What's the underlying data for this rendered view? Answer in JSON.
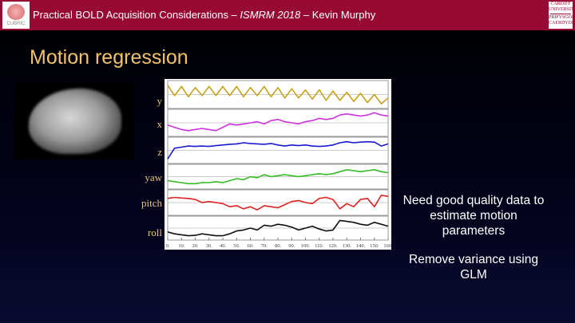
{
  "header": {
    "title_main": "Practical BOLD Acquisition Considerations – ",
    "title_conf": "ISMRM 2018",
    "title_author": " – Kevin Murphy",
    "logo_left_text": "CUBRIC",
    "logo_right_text": "CARDIFF UNIVERSITY PRIFYSGOL CAERDYDD",
    "color": "#960a34"
  },
  "slide": {
    "title": "Motion regression",
    "side_text_1": "Need good quality data to estimate motion parameters",
    "side_text_2": "Remove variance using GLM"
  },
  "chart_data": {
    "type": "line",
    "title": "",
    "xlabel": "",
    "ylabel": "",
    "xlim": [
      0,
      160
    ],
    "x_ticks": [
      "0.",
      "10.",
      "20.",
      "30.",
      "40.",
      "50.",
      "60.",
      "70.",
      "80.",
      "90.",
      "100.",
      "110.",
      "120.",
      "130.",
      "140.",
      "150.",
      "160."
    ],
    "x_step": 5,
    "y_units": "relative (0-1 per panel)",
    "series": [
      {
        "name": "y",
        "color": "#c8a21a",
        "values": [
          0.9,
          0.45,
          0.85,
          0.4,
          0.8,
          0.45,
          0.85,
          0.45,
          0.85,
          0.45,
          0.85,
          0.4,
          0.8,
          0.45,
          0.85,
          0.4,
          0.8,
          0.35,
          0.75,
          0.35,
          0.7,
          0.3,
          0.7,
          0.25,
          0.65,
          0.25,
          0.6,
          0.2,
          0.55,
          0.15,
          0.5,
          0.1,
          0.35
        ]
      },
      {
        "name": "x",
        "color": "#cc33dd",
        "values": [
          0.4,
          0.3,
          0.2,
          0.15,
          0.2,
          0.25,
          0.2,
          0.15,
          0.3,
          0.45,
          0.4,
          0.45,
          0.5,
          0.55,
          0.45,
          0.6,
          0.65,
          0.55,
          0.5,
          0.45,
          0.55,
          0.6,
          0.7,
          0.65,
          0.7,
          0.85,
          0.9,
          0.85,
          0.8,
          0.85,
          0.95,
          0.85,
          0.8
        ]
      },
      {
        "name": "z",
        "color": "#1a1acc",
        "values": [
          0.1,
          0.6,
          0.65,
          0.7,
          0.68,
          0.7,
          0.68,
          0.72,
          0.75,
          0.78,
          0.8,
          0.85,
          0.82,
          0.8,
          0.78,
          0.82,
          0.75,
          0.7,
          0.75,
          0.72,
          0.75,
          0.7,
          0.68,
          0.7,
          0.75,
          0.85,
          0.9,
          0.85,
          0.88,
          0.9,
          0.88,
          0.7,
          0.8
        ]
      },
      {
        "name": "yaw",
        "color": "#33bb22",
        "values": [
          0.3,
          0.25,
          0.2,
          0.15,
          0.15,
          0.2,
          0.2,
          0.25,
          0.2,
          0.3,
          0.4,
          0.35,
          0.5,
          0.45,
          0.6,
          0.5,
          0.55,
          0.6,
          0.55,
          0.5,
          0.55,
          0.6,
          0.65,
          0.6,
          0.65,
          0.75,
          0.85,
          0.8,
          0.75,
          0.8,
          0.85,
          0.75,
          0.7
        ]
      },
      {
        "name": "pitch",
        "color": "#dd2222",
        "values": [
          0.7,
          0.75,
          0.72,
          0.7,
          0.65,
          0.5,
          0.55,
          0.5,
          0.45,
          0.3,
          0.35,
          0.2,
          0.3,
          0.15,
          0.35,
          0.3,
          0.25,
          0.4,
          0.55,
          0.6,
          0.5,
          0.45,
          0.7,
          0.75,
          0.65,
          0.2,
          0.45,
          0.3,
          0.65,
          0.7,
          0.3,
          0.85,
          0.8
        ]
      },
      {
        "name": "roll",
        "color": "#111111",
        "values": [
          0.3,
          0.2,
          0.15,
          0.1,
          0.12,
          0.2,
          0.15,
          0.1,
          0.1,
          0.2,
          0.35,
          0.4,
          0.5,
          0.4,
          0.65,
          0.6,
          0.7,
          0.65,
          0.55,
          0.4,
          0.5,
          0.6,
          0.45,
          0.35,
          0.4,
          0.9,
          0.85,
          0.8,
          0.7,
          0.65,
          0.8,
          0.7,
          0.6
        ]
      }
    ]
  }
}
